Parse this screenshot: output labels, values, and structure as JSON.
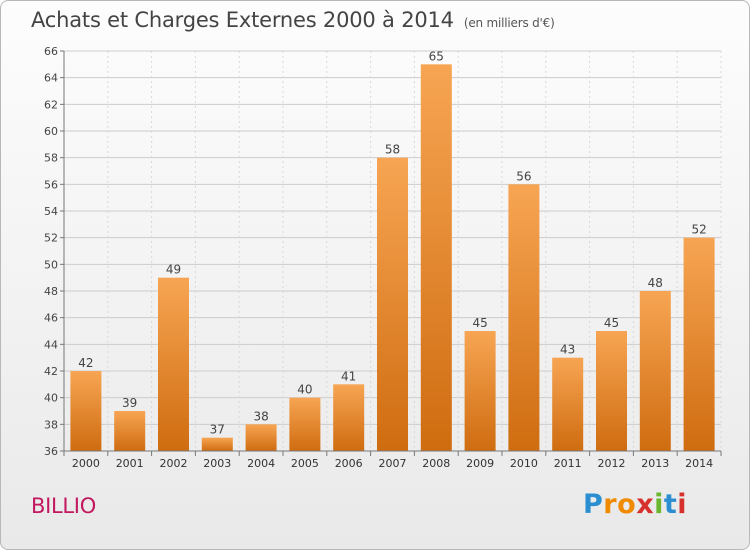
{
  "title": "Achats et Charges Externes 2000 à 2014",
  "unit_note": "(en milliers d'€)",
  "commune": "BILLIO",
  "logo": {
    "letters": [
      "P",
      "r",
      "o",
      "x",
      "i",
      "t",
      "i"
    ],
    "colors": [
      "#2a8ed1",
      "#f08a00",
      "#f08a00",
      "#d6312d",
      "#6bb52f",
      "#2a8ed1",
      "#d6312d"
    ]
  },
  "colors": {
    "bar_light": "#f7a553",
    "bar_dark": "#cf6c10"
  },
  "chart_data": {
    "type": "bar",
    "title": "Achats et Charges Externes 2000 à 2014",
    "subtitle": "(en milliers d'€)",
    "categories": [
      "2000",
      "2001",
      "2002",
      "2003",
      "2004",
      "2005",
      "2006",
      "2007",
      "2008",
      "2009",
      "2010",
      "2011",
      "2012",
      "2013",
      "2014"
    ],
    "values": [
      42,
      39,
      49,
      37,
      38,
      40,
      41,
      58,
      65,
      45,
      56,
      43,
      45,
      48,
      52
    ],
    "data_labels": [
      "42",
      "39",
      "49",
      "37",
      "38",
      "40",
      "41",
      "58",
      "65",
      "45",
      "56",
      "43",
      "45",
      "48",
      "52"
    ],
    "yticks": [
      "36",
      "38",
      "40",
      "42",
      "44",
      "46",
      "48",
      "50",
      "52",
      "54",
      "56",
      "58",
      "60",
      "62",
      "64",
      "66"
    ],
    "ylim": [
      36,
      66
    ],
    "xlabel": "",
    "ylabel": "",
    "grid": true
  }
}
